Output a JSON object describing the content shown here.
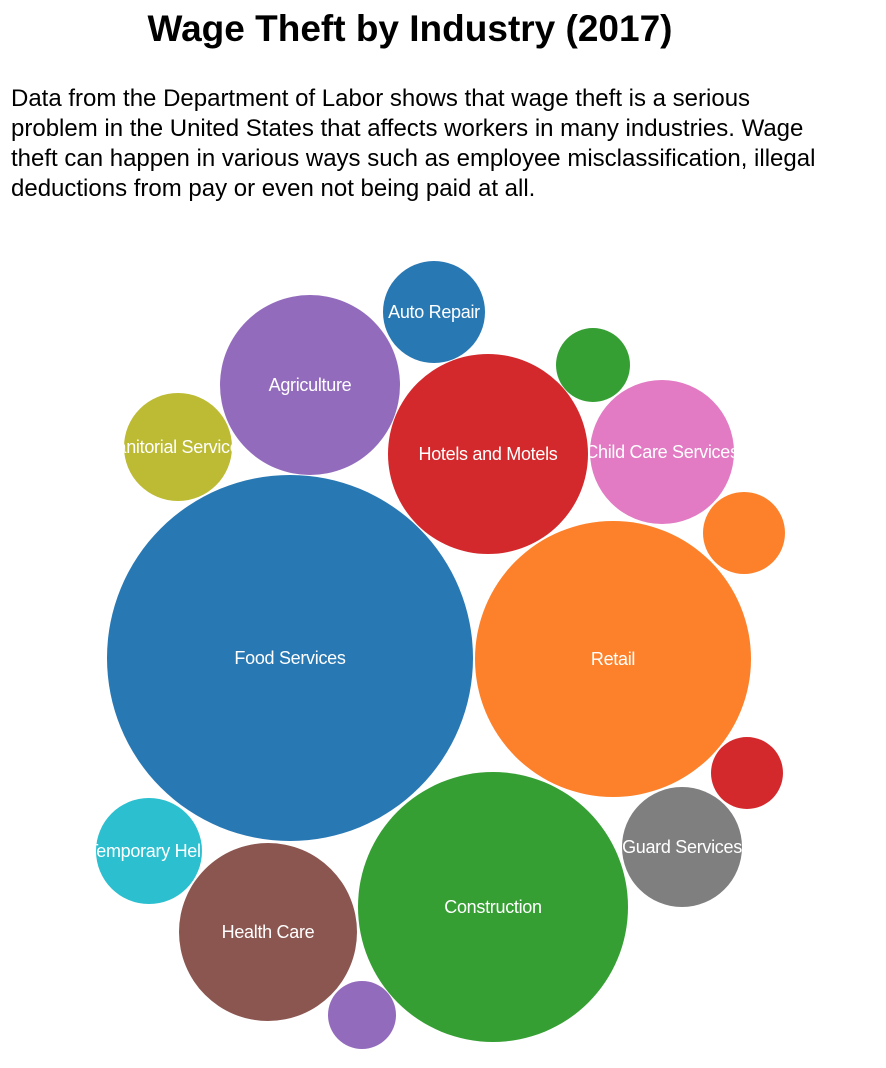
{
  "page": {
    "title": "Wage Theft by Industry (2017)",
    "description": "Data from the Department of Labor shows that wage theft is a serious problem in the United States that affects workers in many industries. Wage theft can happen in various ways such as employee misclassification, illegal deductions from pay or even not being paid at all."
  },
  "chart_data": {
    "type": "bubble",
    "title": "Wage Theft by Industry (2017)",
    "bubbles": [
      {
        "label": "Food Services",
        "color": "#2878b4"
      },
      {
        "label": "Retail",
        "color": "#fd812a"
      },
      {
        "label": "Construction",
        "color": "#369f34"
      },
      {
        "label": "Hotels and Motels",
        "color": "#d3292d"
      },
      {
        "label": "Agriculture",
        "color": "#936bbd"
      },
      {
        "label": "Health Care",
        "color": "#8b5650"
      },
      {
        "label": "Child Care Services",
        "color": "#e27bc3"
      },
      {
        "label": "Guard Services",
        "color": "#7f7f7f"
      },
      {
        "label": "Janitorial Services",
        "color": "#bcbb33"
      },
      {
        "label": "Temporary Help",
        "color": "#2bbfcf"
      },
      {
        "label": "Auto Repair",
        "color": "#2878b4"
      },
      {
        "label": "",
        "color": "#369f34"
      },
      {
        "label": "",
        "color": "#fd812a"
      },
      {
        "label": "",
        "color": "#d3292d"
      },
      {
        "label": "",
        "color": "#936bbd"
      }
    ]
  }
}
